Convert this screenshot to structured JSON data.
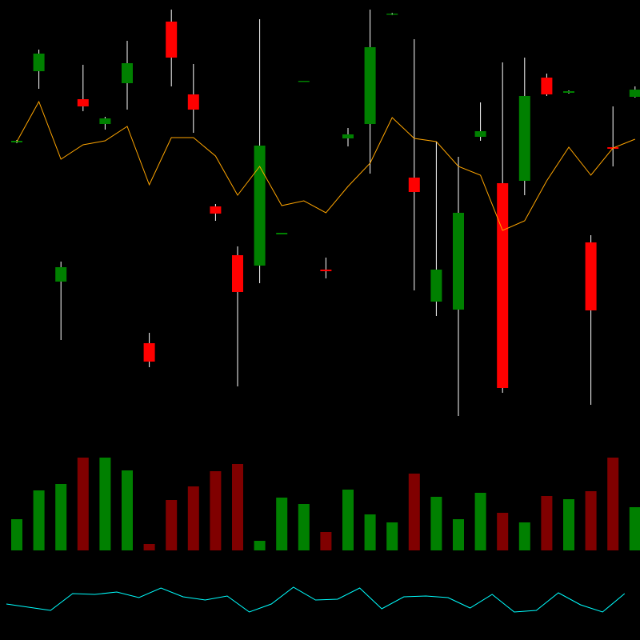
{
  "chart_data": {
    "type": "candlestick",
    "ylim": [
      0,
      540
    ],
    "up_color": "#008000",
    "down_color": "#ff0000",
    "wick_color": "#ffffff",
    "open": [
      362,
      451,
      188,
      416,
      385,
      436,
      111,
      513,
      422,
      282,
      221,
      208,
      247,
      438,
      203,
      367,
      385,
      522,
      318,
      163,
      153,
      369,
      311,
      314,
      443,
      424,
      237,
      356,
      419
    ],
    "high": [
      365,
      478,
      213,
      459,
      394,
      489,
      124,
      528,
      460,
      285,
      232,
      516,
      249,
      439,
      218,
      380,
      528,
      524,
      491,
      363,
      344,
      412,
      462,
      468,
      448,
      427,
      246,
      407,
      432
    ],
    "low": [
      361,
      429,
      115,
      401,
      378,
      403,
      81,
      432,
      374,
      264,
      57,
      186,
      247,
      438,
      192,
      357,
      323,
      521,
      177,
      145,
      20,
      364,
      49,
      296,
      420,
      423,
      34,
      332,
      418
    ],
    "close": [
      364,
      473,
      206,
      407,
      392,
      461,
      88,
      468,
      403,
      273,
      175,
      358,
      249,
      439,
      201,
      372,
      481,
      523,
      300,
      203,
      274,
      376,
      55,
      420,
      422,
      426,
      152,
      354,
      428
    ],
    "ma": {
      "color": "#ffa500",
      "values": [
        363,
        413,
        341,
        359,
        364,
        382,
        309,
        368,
        368,
        345,
        296,
        332,
        283,
        289,
        274,
        307,
        336,
        393,
        367,
        363,
        332,
        321,
        252,
        264,
        314,
        356,
        321,
        355,
        366
      ]
    },
    "volume": {
      "ylim": [
        0,
        130
      ],
      "up_color": "#008000",
      "down_color": "#800000",
      "values": [
        39,
        75,
        83,
        116,
        116,
        100,
        8,
        63,
        80,
        99,
        108,
        12,
        66,
        58,
        23,
        76,
        45,
        35,
        96,
        67,
        39,
        72,
        47,
        35,
        68,
        64,
        74,
        116,
        54
      ]
    },
    "indicator": {
      "ylim": [
        0,
        100
      ],
      "color": "#00ffff",
      "values": [
        45,
        41,
        37,
        58,
        57,
        60,
        53,
        65,
        54,
        50,
        55,
        35,
        45,
        66,
        50,
        51,
        65,
        39,
        54,
        55,
        53,
        40,
        57,
        35,
        37,
        59,
        44,
        35,
        58
      ]
    }
  }
}
